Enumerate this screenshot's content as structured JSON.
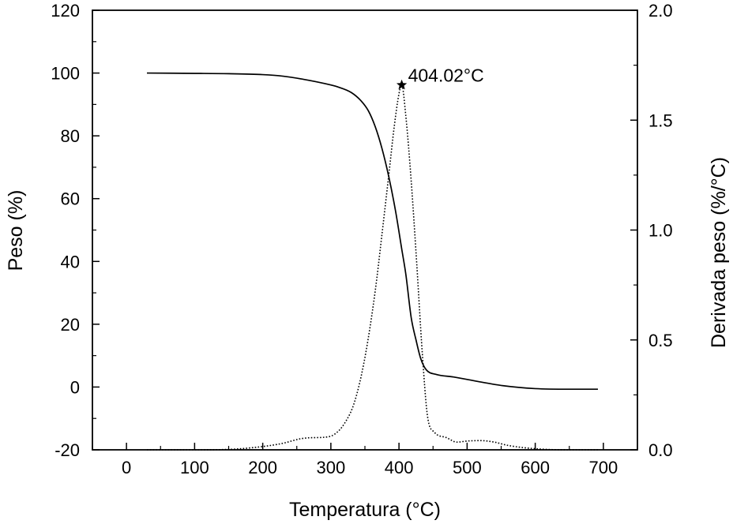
{
  "chart_data": {
    "type": "line",
    "title": "",
    "xlabel": "Temperatura (°C)",
    "ylabel_left": "Peso (%)",
    "ylabel_right": "Derivada peso (%/°C)",
    "xlim": [
      -50,
      750
    ],
    "ylim_left": [
      -20,
      120
    ],
    "ylim_right": [
      0.0,
      2.0
    ],
    "x_ticks": [
      "0",
      "100",
      "200",
      "300",
      "400",
      "500",
      "600",
      "700"
    ],
    "y_left_ticks": [
      "-20",
      "0",
      "20",
      "40",
      "60",
      "80",
      "100",
      "120"
    ],
    "y_right_ticks": [
      "0.0",
      "0.5",
      "1.0",
      "1.5",
      "2.0"
    ],
    "grid": false,
    "legend": "none",
    "series": [
      {
        "axis": "left",
        "style": "solid",
        "points": [
          [
            30,
            100.0
          ],
          [
            100,
            99.9
          ],
          [
            150,
            99.8
          ],
          [
            200,
            99.5
          ],
          [
            230,
            99.0
          ],
          [
            260,
            98.0
          ],
          [
            290,
            96.7
          ],
          [
            310,
            95.6
          ],
          [
            330,
            93.8
          ],
          [
            345,
            91.0
          ],
          [
            355,
            88.0
          ],
          [
            365,
            83.0
          ],
          [
            375,
            76.0
          ],
          [
            385,
            67.0
          ],
          [
            395,
            56.0
          ],
          [
            404,
            44.0
          ],
          [
            410,
            36.0
          ],
          [
            418,
            22.0
          ],
          [
            425,
            15.0
          ],
          [
            432,
            9.0
          ],
          [
            440,
            5.5
          ],
          [
            455,
            4.0
          ],
          [
            480,
            3.2
          ],
          [
            510,
            2.0
          ],
          [
            550,
            0.5
          ],
          [
            600,
            -0.5
          ],
          [
            650,
            -0.7
          ],
          [
            692,
            -0.7
          ]
        ]
      },
      {
        "axis": "right",
        "style": "dotted",
        "points": [
          [
            30,
            0.0
          ],
          [
            100,
            0.0
          ],
          [
            150,
            0.002
          ],
          [
            200,
            0.015
          ],
          [
            230,
            0.03
          ],
          [
            255,
            0.05
          ],
          [
            270,
            0.055
          ],
          [
            290,
            0.057
          ],
          [
            305,
            0.07
          ],
          [
            320,
            0.12
          ],
          [
            335,
            0.22
          ],
          [
            350,
            0.42
          ],
          [
            365,
            0.72
          ],
          [
            375,
            0.98
          ],
          [
            385,
            1.25
          ],
          [
            393,
            1.47
          ],
          [
            400,
            1.62
          ],
          [
            404.02,
            1.66
          ],
          [
            410,
            1.52
          ],
          [
            418,
            1.22
          ],
          [
            426,
            0.85
          ],
          [
            434,
            0.45
          ],
          [
            442,
            0.15
          ],
          [
            452,
            0.08
          ],
          [
            470,
            0.055
          ],
          [
            485,
            0.035
          ],
          [
            500,
            0.04
          ],
          [
            520,
            0.042
          ],
          [
            540,
            0.035
          ],
          [
            560,
            0.02
          ],
          [
            600,
            0.005
          ],
          [
            650,
            0.0
          ],
          [
            692,
            0.0
          ]
        ]
      }
    ],
    "annotations": [
      {
        "text": "404.02°C",
        "x": 404.02,
        "y_right": 1.66,
        "marker": "star"
      }
    ]
  }
}
